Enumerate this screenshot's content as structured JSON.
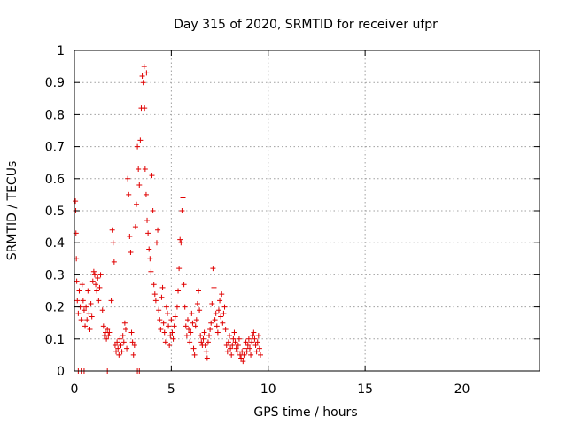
{
  "chart_data": {
    "type": "scatter",
    "title": "Day 315 of 2020, SRMTID for receiver ufpr",
    "xlabel": "GPS time / hours",
    "ylabel": "SRMTID / TECUs",
    "xlim": [
      0,
      24
    ],
    "ylim": [
      0,
      1
    ],
    "x_ticks": [
      0,
      5,
      10,
      15,
      20
    ],
    "x_tick_labels": [
      "0",
      "5",
      "10",
      "15",
      "20"
    ],
    "y_ticks": [
      0,
      0.1,
      0.2,
      0.3,
      0.4,
      0.5,
      0.6,
      0.7,
      0.8,
      0.9,
      1
    ],
    "y_tick_labels": [
      "0",
      "0.1",
      "0.2",
      "0.3",
      "0.4",
      "0.5",
      "0.6",
      "0.7",
      "0.8",
      "0.9",
      "1"
    ],
    "grid": true,
    "marker": "+",
    "color": "#e00000",
    "series": [
      {
        "name": "SRMTID",
        "points": [
          [
            0.05,
            0.53
          ],
          [
            0.07,
            0.5
          ],
          [
            0.08,
            0.43
          ],
          [
            0.1,
            0.35
          ],
          [
            0.12,
            0.28
          ],
          [
            0.15,
            0.22
          ],
          [
            0.2,
            0.18
          ],
          [
            0.25,
            0.25
          ],
          [
            0.3,
            0.2
          ],
          [
            0.35,
            0.16
          ],
          [
            0.4,
            0.27
          ],
          [
            0.45,
            0.22
          ],
          [
            0.5,
            0.19
          ],
          [
            0.55,
            0.14
          ],
          [
            0.6,
            0.2
          ],
          [
            0.65,
            0.16
          ],
          [
            0.7,
            0.25
          ],
          [
            0.75,
            0.18
          ],
          [
            0.8,
            0.13
          ],
          [
            0.85,
            0.21
          ],
          [
            0.9,
            0.17
          ],
          [
            0.95,
            0.28
          ],
          [
            1.0,
            0.31
          ],
          [
            1.05,
            0.3
          ],
          [
            1.1,
            0.27
          ],
          [
            1.15,
            0.25
          ],
          [
            1.2,
            0.29
          ],
          [
            1.25,
            0.22
          ],
          [
            1.3,
            0.26
          ],
          [
            1.35,
            0.3
          ],
          [
            1.45,
            0.19
          ],
          [
            1.5,
            0.14
          ],
          [
            1.55,
            0.11
          ],
          [
            1.6,
            0.12
          ],
          [
            1.65,
            0.1
          ],
          [
            1.7,
            0.13
          ],
          [
            1.75,
            0.11
          ],
          [
            1.8,
            0.12
          ],
          [
            1.9,
            0.22
          ],
          [
            1.95,
            0.44
          ],
          [
            2.0,
            0.4
          ],
          [
            2.05,
            0.34
          ],
          [
            2.1,
            0.08
          ],
          [
            2.15,
            0.06
          ],
          [
            2.2,
            0.09
          ],
          [
            2.25,
            0.07
          ],
          [
            2.3,
            0.05
          ],
          [
            2.35,
            0.1
          ],
          [
            2.4,
            0.08
          ],
          [
            2.45,
            0.06
          ],
          [
            2.5,
            0.11
          ],
          [
            2.55,
            0.09
          ],
          [
            2.6,
            0.15
          ],
          [
            2.65,
            0.13
          ],
          [
            2.7,
            0.07
          ],
          [
            2.75,
            0.6
          ],
          [
            2.8,
            0.55
          ],
          [
            2.85,
            0.42
          ],
          [
            2.9,
            0.37
          ],
          [
            2.95,
            0.12
          ],
          [
            3.0,
            0.09
          ],
          [
            3.05,
            0.05
          ],
          [
            3.1,
            0.08
          ],
          [
            3.15,
            0.45
          ],
          [
            3.2,
            0.52
          ],
          [
            3.25,
            0.7
          ],
          [
            3.3,
            0.63
          ],
          [
            3.35,
            0.58
          ],
          [
            3.4,
            0.72
          ],
          [
            3.45,
            0.82
          ],
          [
            3.5,
            0.92
          ],
          [
            3.55,
            0.9
          ],
          [
            3.6,
            0.95
          ],
          [
            3.62,
            0.82
          ],
          [
            3.65,
            0.63
          ],
          [
            3.7,
            0.55
          ],
          [
            3.72,
            0.93
          ],
          [
            3.75,
            0.47
          ],
          [
            3.8,
            0.43
          ],
          [
            3.85,
            0.38
          ],
          [
            3.9,
            0.35
          ],
          [
            3.95,
            0.31
          ],
          [
            4.0,
            0.61
          ],
          [
            4.05,
            0.5
          ],
          [
            4.1,
            0.27
          ],
          [
            4.15,
            0.24
          ],
          [
            4.2,
            0.22
          ],
          [
            4.25,
            0.4
          ],
          [
            4.3,
            0.44
          ],
          [
            4.35,
            0.19
          ],
          [
            4.4,
            0.16
          ],
          [
            4.45,
            0.13
          ],
          [
            4.5,
            0.23
          ],
          [
            4.55,
            0.26
          ],
          [
            4.6,
            0.15
          ],
          [
            4.65,
            0.12
          ],
          [
            4.7,
            0.09
          ],
          [
            4.75,
            0.2
          ],
          [
            4.8,
            0.18
          ],
          [
            4.85,
            0.14
          ],
          [
            4.9,
            0.08
          ],
          [
            4.95,
            0.11
          ],
          [
            5.0,
            0.16
          ],
          [
            5.05,
            0.12
          ],
          [
            5.1,
            0.1
          ],
          [
            5.15,
            0.14
          ],
          [
            5.2,
            0.17
          ],
          [
            5.3,
            0.2
          ],
          [
            5.35,
            0.25
          ],
          [
            5.4,
            0.32
          ],
          [
            5.45,
            0.41
          ],
          [
            5.5,
            0.4
          ],
          [
            5.55,
            0.5
          ],
          [
            5.6,
            0.54
          ],
          [
            5.65,
            0.27
          ],
          [
            5.7,
            0.2
          ],
          [
            5.75,
            0.14
          ],
          [
            5.8,
            0.11
          ],
          [
            5.85,
            0.16
          ],
          [
            5.9,
            0.13
          ],
          [
            5.95,
            0.09
          ],
          [
            6.0,
            0.12
          ],
          [
            6.05,
            0.18
          ],
          [
            6.1,
            0.15
          ],
          [
            6.15,
            0.07
          ],
          [
            6.2,
            0.05
          ],
          [
            6.25,
            0.14
          ],
          [
            6.3,
            0.16
          ],
          [
            6.35,
            0.21
          ],
          [
            6.4,
            0.25
          ],
          [
            6.45,
            0.19
          ],
          [
            6.5,
            0.11
          ],
          [
            6.55,
            0.09
          ],
          [
            6.6,
            0.08
          ],
          [
            6.65,
            0.1
          ],
          [
            6.7,
            0.12
          ],
          [
            6.75,
            0.08
          ],
          [
            6.8,
            0.06
          ],
          [
            6.85,
            0.04
          ],
          [
            6.9,
            0.09
          ],
          [
            6.95,
            0.11
          ],
          [
            7.0,
            0.13
          ],
          [
            7.05,
            0.15
          ],
          [
            7.1,
            0.21
          ],
          [
            7.15,
            0.32
          ],
          [
            7.2,
            0.26
          ],
          [
            7.25,
            0.16
          ],
          [
            7.3,
            0.18
          ],
          [
            7.35,
            0.14
          ],
          [
            7.4,
            0.12
          ],
          [
            7.45,
            0.19
          ],
          [
            7.5,
            0.22
          ],
          [
            7.55,
            0.17
          ],
          [
            7.6,
            0.24
          ],
          [
            7.65,
            0.15
          ],
          [
            7.7,
            0.18
          ],
          [
            7.75,
            0.2
          ],
          [
            7.8,
            0.13
          ],
          [
            7.85,
            0.08
          ],
          [
            7.9,
            0.06
          ],
          [
            7.95,
            0.09
          ],
          [
            8.0,
            0.11
          ],
          [
            8.05,
            0.07
          ],
          [
            8.1,
            0.05
          ],
          [
            8.15,
            0.08
          ],
          [
            8.2,
            0.1
          ],
          [
            8.25,
            0.12
          ],
          [
            8.3,
            0.09
          ],
          [
            8.35,
            0.07
          ],
          [
            8.4,
            0.06
          ],
          [
            8.45,
            0.08
          ],
          [
            8.5,
            0.1
          ],
          [
            8.55,
            0.05
          ],
          [
            8.6,
            0.04
          ],
          [
            8.65,
            0.06
          ],
          [
            8.7,
            0.03
          ],
          [
            8.75,
            0.05
          ],
          [
            8.8,
            0.07
          ],
          [
            8.85,
            0.09
          ],
          [
            8.9,
            0.06
          ],
          [
            8.95,
            0.08
          ],
          [
            9.0,
            0.1
          ],
          [
            9.05,
            0.07
          ],
          [
            9.1,
            0.05
          ],
          [
            9.15,
            0.09
          ],
          [
            9.2,
            0.11
          ],
          [
            9.25,
            0.12
          ],
          [
            9.3,
            0.1
          ],
          [
            9.35,
            0.08
          ],
          [
            9.4,
            0.06
          ],
          [
            9.45,
            0.09
          ],
          [
            9.5,
            0.11
          ],
          [
            9.55,
            0.07
          ],
          [
            9.6,
            0.05
          ],
          [
            0.2,
            0.0
          ],
          [
            0.35,
            0.0
          ],
          [
            0.5,
            0.0
          ],
          [
            1.7,
            0.0
          ],
          [
            3.25,
            0.0
          ],
          [
            3.35,
            0.0
          ]
        ]
      }
    ]
  }
}
